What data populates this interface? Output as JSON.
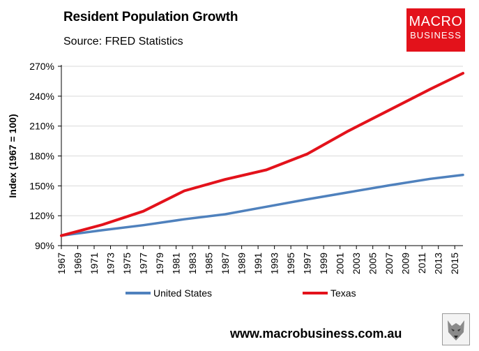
{
  "header": {
    "title": "Resident Population Growth",
    "subtitle": "Source: FRED Statistics"
  },
  "logo": {
    "line1": "MACRO",
    "line2": "BUSINESS"
  },
  "footer": {
    "url": "www.macrobusiness.com.au"
  },
  "colors": {
    "us": "#4f81bd",
    "texas": "#e3121b",
    "logo_bg": "#e3121b"
  },
  "chart_data": {
    "type": "line",
    "title": "Resident Population Growth",
    "ylabel": "Index (1967 = 100)",
    "xlabel": "",
    "ylim": [
      90,
      270
    ],
    "yticks": [
      90,
      120,
      150,
      180,
      210,
      240,
      270
    ],
    "ytick_labels": [
      "90%",
      "120%",
      "150%",
      "180%",
      "210%",
      "240%",
      "270%"
    ],
    "xlim": [
      1967,
      2016
    ],
    "xticks": [
      "1967",
      "1969",
      "1971",
      "1973",
      "1975",
      "1977",
      "1979",
      "1981",
      "1983",
      "1985",
      "1987",
      "1989",
      "1991",
      "1993",
      "1995",
      "1997",
      "1999",
      "2001",
      "2003",
      "2005",
      "2007",
      "2009",
      "2011",
      "2013",
      "2015"
    ],
    "grid": "horizontal",
    "legend": "bottom",
    "series": [
      {
        "name": "United States",
        "color": "#4f81bd",
        "x": [
          1967,
          1972,
          1977,
          1982,
          1987,
          1992,
          1997,
          2002,
          2007,
          2012,
          2016
        ],
        "values": [
          100,
          105.5,
          110.5,
          116.5,
          121.5,
          129,
          136.5,
          143.5,
          150.5,
          157,
          161
        ]
      },
      {
        "name": "Texas",
        "color": "#e3121b",
        "x": [
          1967,
          1972,
          1977,
          1982,
          1987,
          1992,
          1997,
          2002,
          2007,
          2012,
          2016
        ],
        "values": [
          100,
          111,
          124.5,
          145,
          156.5,
          166,
          182,
          205,
          226,
          247,
          263
        ]
      }
    ]
  }
}
